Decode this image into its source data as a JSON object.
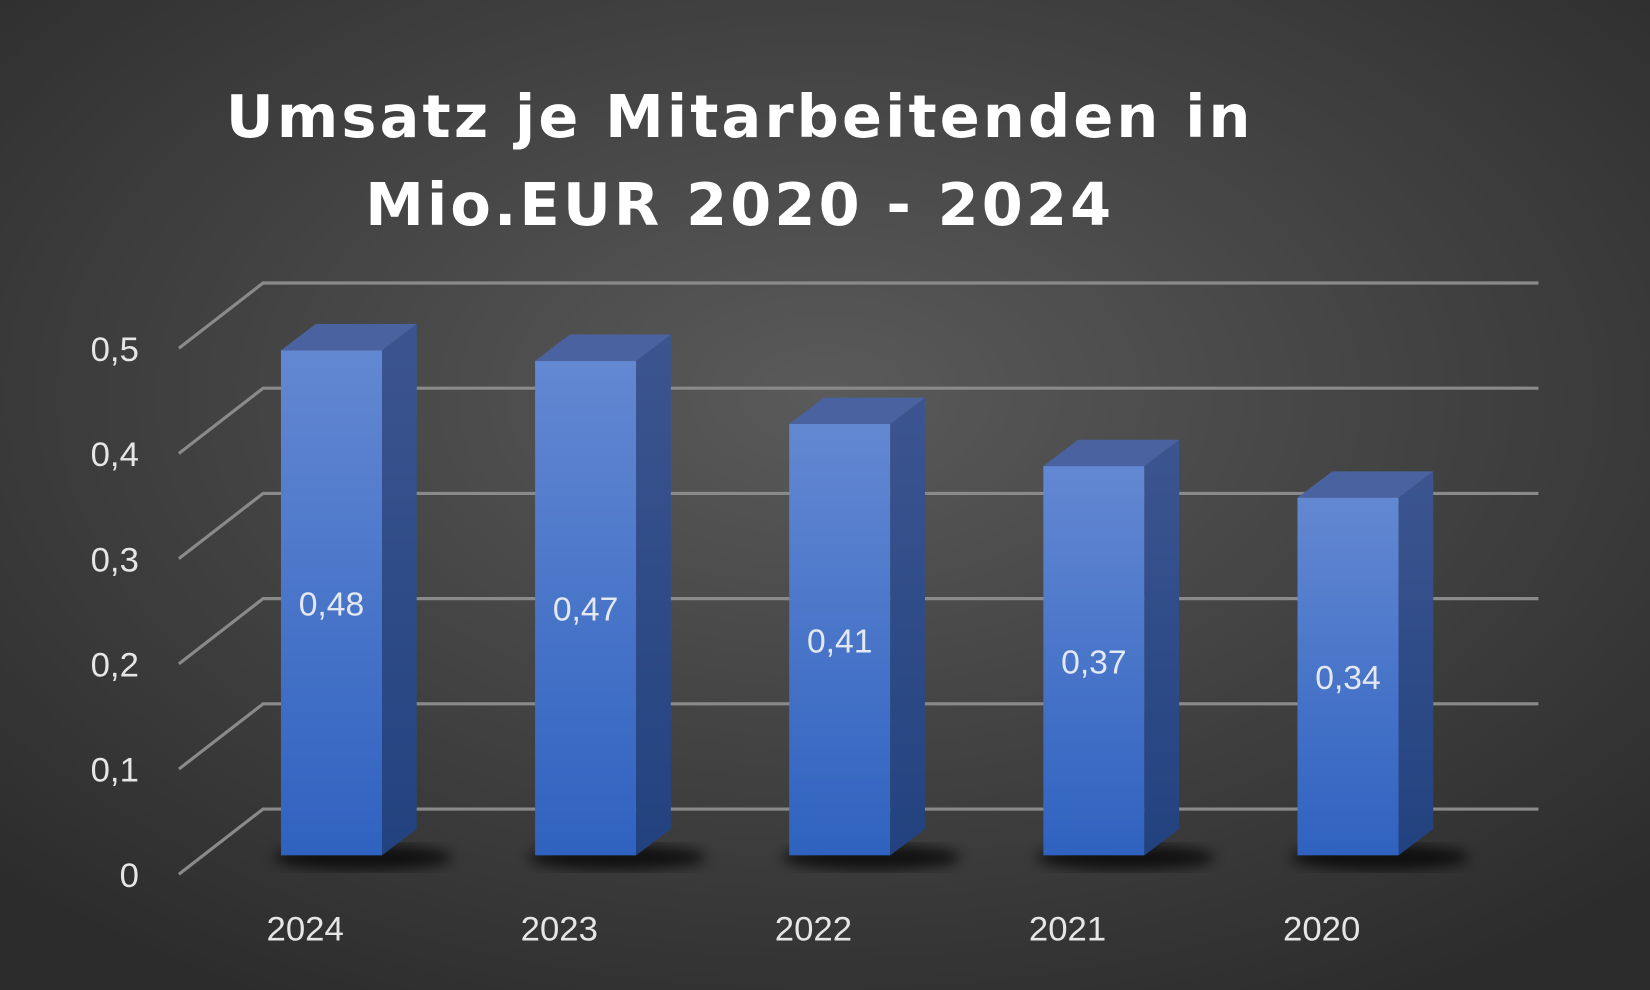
{
  "chart_data": {
    "type": "bar",
    "style": "3d-column",
    "title_lines": [
      "Umsatz je Mitarbeitenden in",
      "Mio.EUR 2020 - 2024"
    ],
    "categories": [
      "2024",
      "2023",
      "2022",
      "2021",
      "2020"
    ],
    "values": [
      0.48,
      0.47,
      0.41,
      0.37,
      0.34
    ],
    "value_labels": [
      "0,48",
      "0,47",
      "0,41",
      "0,37",
      "0,34"
    ],
    "yticks": [
      0,
      0.1,
      0.2,
      0.3,
      0.4,
      0.5
    ],
    "ytick_labels": [
      "0",
      "0,1",
      "0,2",
      "0,3",
      "0,4",
      "0,5"
    ],
    "ylim": [
      0,
      0.5
    ],
    "xlabel": "",
    "ylabel": "",
    "grid": true,
    "legend": "none",
    "colors": {
      "bar_front": "#4a78d0",
      "bar_side": "#2d4c8a",
      "bar_top": "#4a63a0",
      "background": "#3a3a3a",
      "grid": "#8a8a8a"
    }
  }
}
